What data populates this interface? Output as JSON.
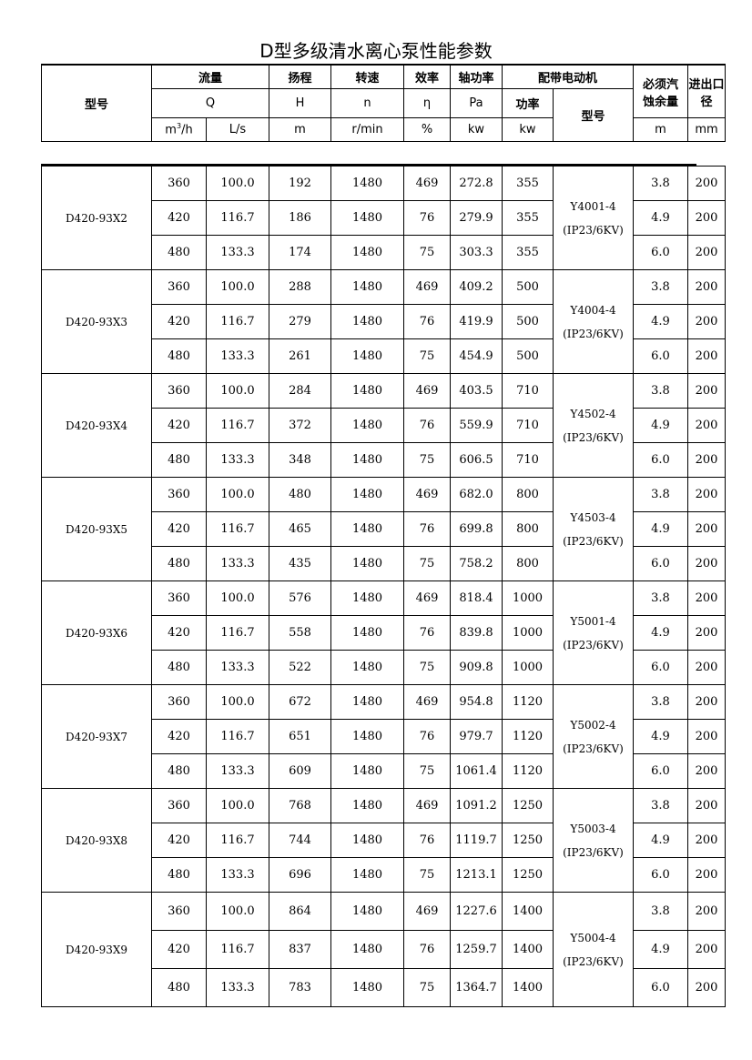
{
  "title": "D型多级清水离心泵性能参数",
  "header": {
    "model": "型号",
    "flow": "流量",
    "head": "扬程",
    "speed": "转速",
    "efficiency": "效率",
    "shaft_power": "轴功率",
    "motor": "配带电动机",
    "npsh": "必须汽蚀余量",
    "inlet": "进出口径",
    "flow_sym": "Q",
    "head_sym": "H",
    "speed_sym": "n",
    "eff_sym": "η",
    "shaft_sym": "Pa",
    "motor_power": "功率",
    "motor_model": "型号",
    "unit_m3h_base": "m",
    "unit_m3h_sup": "3",
    "unit_m3h_tail": "/h",
    "unit_ls": "L/s",
    "unit_m": "m",
    "unit_rmin": "r/min",
    "unit_pct": "%",
    "unit_kw": "kw",
    "unit_kw2": "kw",
    "unit_npsh": "m",
    "unit_mm": "mm"
  },
  "common": {
    "q": [
      "360",
      "420",
      "480"
    ],
    "ls": [
      "100.0",
      "116.7",
      "133.3"
    ],
    "n": [
      "1480",
      "1480",
      "1480"
    ],
    "eff": [
      "469",
      "76",
      "75"
    ],
    "npsh": [
      "3.8",
      "4.9",
      "6.0"
    ],
    "dia": [
      "200",
      "200",
      "200"
    ]
  },
  "models": [
    {
      "name": "D420-93X2",
      "h": [
        "192",
        "186",
        "174"
      ],
      "pa": [
        "272.8",
        "279.9",
        "303.3"
      ],
      "power": "355",
      "motor": "Y4001-4",
      "motor_spec": "(IP23/6KV)"
    },
    {
      "name": "D420-93X3",
      "h": [
        "288",
        "279",
        "261"
      ],
      "pa": [
        "409.2",
        "419.9",
        "454.9"
      ],
      "power": "500",
      "motor": "Y4004-4",
      "motor_spec": "(IP23/6KV)"
    },
    {
      "name": "D420-93X4",
      "h": [
        "284",
        "372",
        "348"
      ],
      "pa": [
        "403.5",
        "559.9",
        "606.5"
      ],
      "power": "710",
      "motor": "Y4502-4",
      "motor_spec": "(IP23/6KV)"
    },
    {
      "name": "D420-93X5",
      "h": [
        "480",
        "465",
        "435"
      ],
      "pa": [
        "682.0",
        "699.8",
        "758.2"
      ],
      "power": "800",
      "motor": "Y4503-4",
      "motor_spec": "(IP23/6KV)"
    },
    {
      "name": "D420-93X6",
      "h": [
        "576",
        "558",
        "522"
      ],
      "pa": [
        "818.4",
        "839.8",
        "909.8"
      ],
      "power": "1000",
      "motor": "Y5001-4",
      "motor_spec": "(IP23/6KV)"
    },
    {
      "name": "D420-93X7",
      "h": [
        "672",
        "651",
        "609"
      ],
      "pa": [
        "954.8",
        "979.7",
        "1061.4"
      ],
      "power": "1120",
      "motor": "Y5002-4",
      "motor_spec": "(IP23/6KV)"
    },
    {
      "name": "D420-93X8",
      "h": [
        "768",
        "744",
        "696"
      ],
      "pa": [
        "1091.2",
        "1119.7",
        "1213.1"
      ],
      "power": "1250",
      "motor": "Y5003-4",
      "motor_spec": "(IP23/6KV)"
    },
    {
      "name": "D420-93X9",
      "h": [
        "864",
        "837",
        "783"
      ],
      "pa": [
        "1227.6",
        "1259.7",
        "1364.7"
      ],
      "power": "1400",
      "motor": "Y5004-4",
      "motor_spec": "(IP23/6KV)"
    }
  ]
}
